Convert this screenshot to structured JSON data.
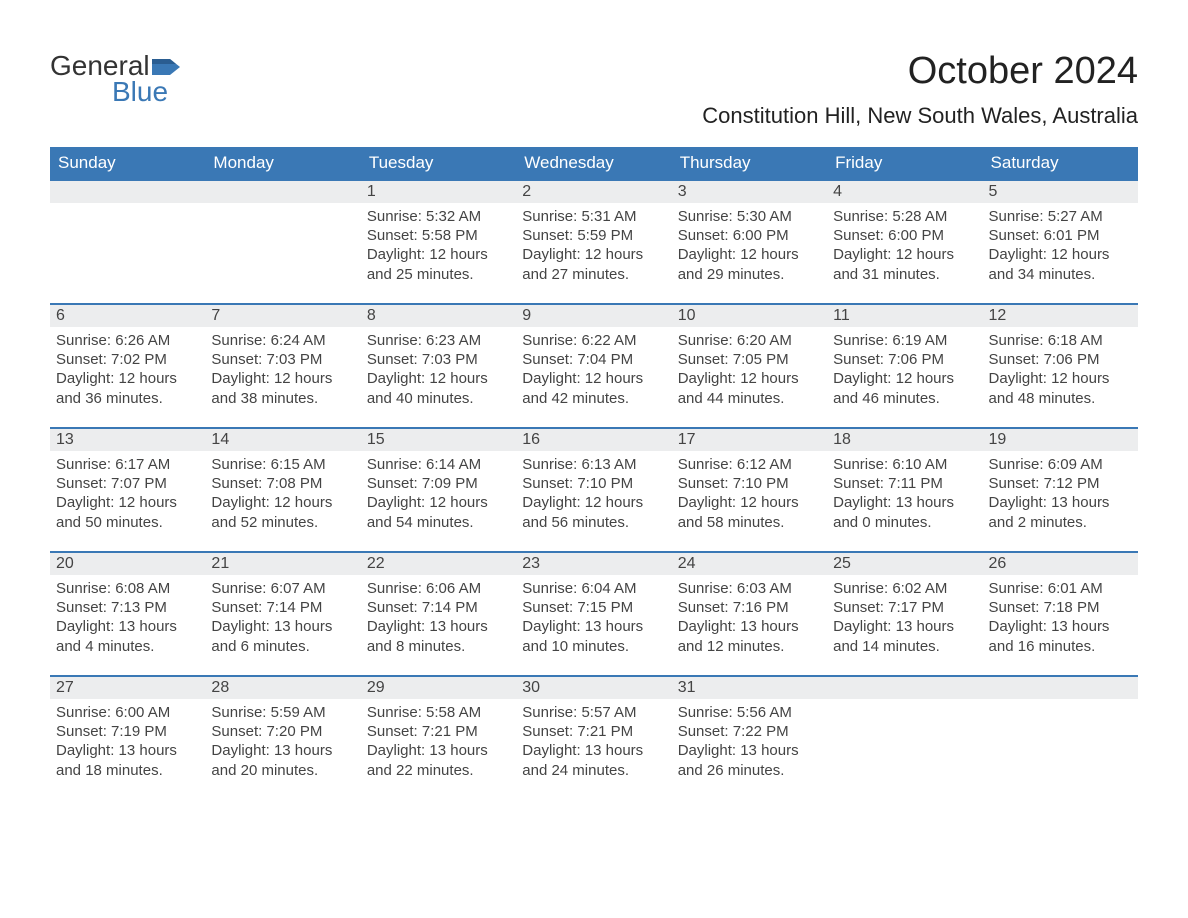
{
  "logo": {
    "word1": "General",
    "word2": "Blue"
  },
  "title": "October 2024",
  "location": "Constitution Hill, New South Wales, Australia",
  "colors": {
    "header_bg": "#3a78b5",
    "header_text": "#ffffff",
    "daynum_bg": "#ecedee",
    "daynum_border": "#3a78b5",
    "body_text": "#444444",
    "page_bg": "#ffffff"
  },
  "weekdays": [
    "Sunday",
    "Monday",
    "Tuesday",
    "Wednesday",
    "Thursday",
    "Friday",
    "Saturday"
  ],
  "labels": {
    "sunrise": "Sunrise:",
    "sunset": "Sunset:",
    "daylight": "Daylight:"
  },
  "weeks": [
    [
      null,
      null,
      {
        "n": "1",
        "sunrise": "5:32 AM",
        "sunset": "5:58 PM",
        "daylight": "12 hours and 25 minutes."
      },
      {
        "n": "2",
        "sunrise": "5:31 AM",
        "sunset": "5:59 PM",
        "daylight": "12 hours and 27 minutes."
      },
      {
        "n": "3",
        "sunrise": "5:30 AM",
        "sunset": "6:00 PM",
        "daylight": "12 hours and 29 minutes."
      },
      {
        "n": "4",
        "sunrise": "5:28 AM",
        "sunset": "6:00 PM",
        "daylight": "12 hours and 31 minutes."
      },
      {
        "n": "5",
        "sunrise": "5:27 AM",
        "sunset": "6:01 PM",
        "daylight": "12 hours and 34 minutes."
      }
    ],
    [
      {
        "n": "6",
        "sunrise": "6:26 AM",
        "sunset": "7:02 PM",
        "daylight": "12 hours and 36 minutes."
      },
      {
        "n": "7",
        "sunrise": "6:24 AM",
        "sunset": "7:03 PM",
        "daylight": "12 hours and 38 minutes."
      },
      {
        "n": "8",
        "sunrise": "6:23 AM",
        "sunset": "7:03 PM",
        "daylight": "12 hours and 40 minutes."
      },
      {
        "n": "9",
        "sunrise": "6:22 AM",
        "sunset": "7:04 PM",
        "daylight": "12 hours and 42 minutes."
      },
      {
        "n": "10",
        "sunrise": "6:20 AM",
        "sunset": "7:05 PM",
        "daylight": "12 hours and 44 minutes."
      },
      {
        "n": "11",
        "sunrise": "6:19 AM",
        "sunset": "7:06 PM",
        "daylight": "12 hours and 46 minutes."
      },
      {
        "n": "12",
        "sunrise": "6:18 AM",
        "sunset": "7:06 PM",
        "daylight": "12 hours and 48 minutes."
      }
    ],
    [
      {
        "n": "13",
        "sunrise": "6:17 AM",
        "sunset": "7:07 PM",
        "daylight": "12 hours and 50 minutes."
      },
      {
        "n": "14",
        "sunrise": "6:15 AM",
        "sunset": "7:08 PM",
        "daylight": "12 hours and 52 minutes."
      },
      {
        "n": "15",
        "sunrise": "6:14 AM",
        "sunset": "7:09 PM",
        "daylight": "12 hours and 54 minutes."
      },
      {
        "n": "16",
        "sunrise": "6:13 AM",
        "sunset": "7:10 PM",
        "daylight": "12 hours and 56 minutes."
      },
      {
        "n": "17",
        "sunrise": "6:12 AM",
        "sunset": "7:10 PM",
        "daylight": "12 hours and 58 minutes."
      },
      {
        "n": "18",
        "sunrise": "6:10 AM",
        "sunset": "7:11 PM",
        "daylight": "13 hours and 0 minutes."
      },
      {
        "n": "19",
        "sunrise": "6:09 AM",
        "sunset": "7:12 PM",
        "daylight": "13 hours and 2 minutes."
      }
    ],
    [
      {
        "n": "20",
        "sunrise": "6:08 AM",
        "sunset": "7:13 PM",
        "daylight": "13 hours and 4 minutes."
      },
      {
        "n": "21",
        "sunrise": "6:07 AM",
        "sunset": "7:14 PM",
        "daylight": "13 hours and 6 minutes."
      },
      {
        "n": "22",
        "sunrise": "6:06 AM",
        "sunset": "7:14 PM",
        "daylight": "13 hours and 8 minutes."
      },
      {
        "n": "23",
        "sunrise": "6:04 AM",
        "sunset": "7:15 PM",
        "daylight": "13 hours and 10 minutes."
      },
      {
        "n": "24",
        "sunrise": "6:03 AM",
        "sunset": "7:16 PM",
        "daylight": "13 hours and 12 minutes."
      },
      {
        "n": "25",
        "sunrise": "6:02 AM",
        "sunset": "7:17 PM",
        "daylight": "13 hours and 14 minutes."
      },
      {
        "n": "26",
        "sunrise": "6:01 AM",
        "sunset": "7:18 PM",
        "daylight": "13 hours and 16 minutes."
      }
    ],
    [
      {
        "n": "27",
        "sunrise": "6:00 AM",
        "sunset": "7:19 PM",
        "daylight": "13 hours and 18 minutes."
      },
      {
        "n": "28",
        "sunrise": "5:59 AM",
        "sunset": "7:20 PM",
        "daylight": "13 hours and 20 minutes."
      },
      {
        "n": "29",
        "sunrise": "5:58 AM",
        "sunset": "7:21 PM",
        "daylight": "13 hours and 22 minutes."
      },
      {
        "n": "30",
        "sunrise": "5:57 AM",
        "sunset": "7:21 PM",
        "daylight": "13 hours and 24 minutes."
      },
      {
        "n": "31",
        "sunrise": "5:56 AM",
        "sunset": "7:22 PM",
        "daylight": "13 hours and 26 minutes."
      },
      null,
      null
    ]
  ]
}
